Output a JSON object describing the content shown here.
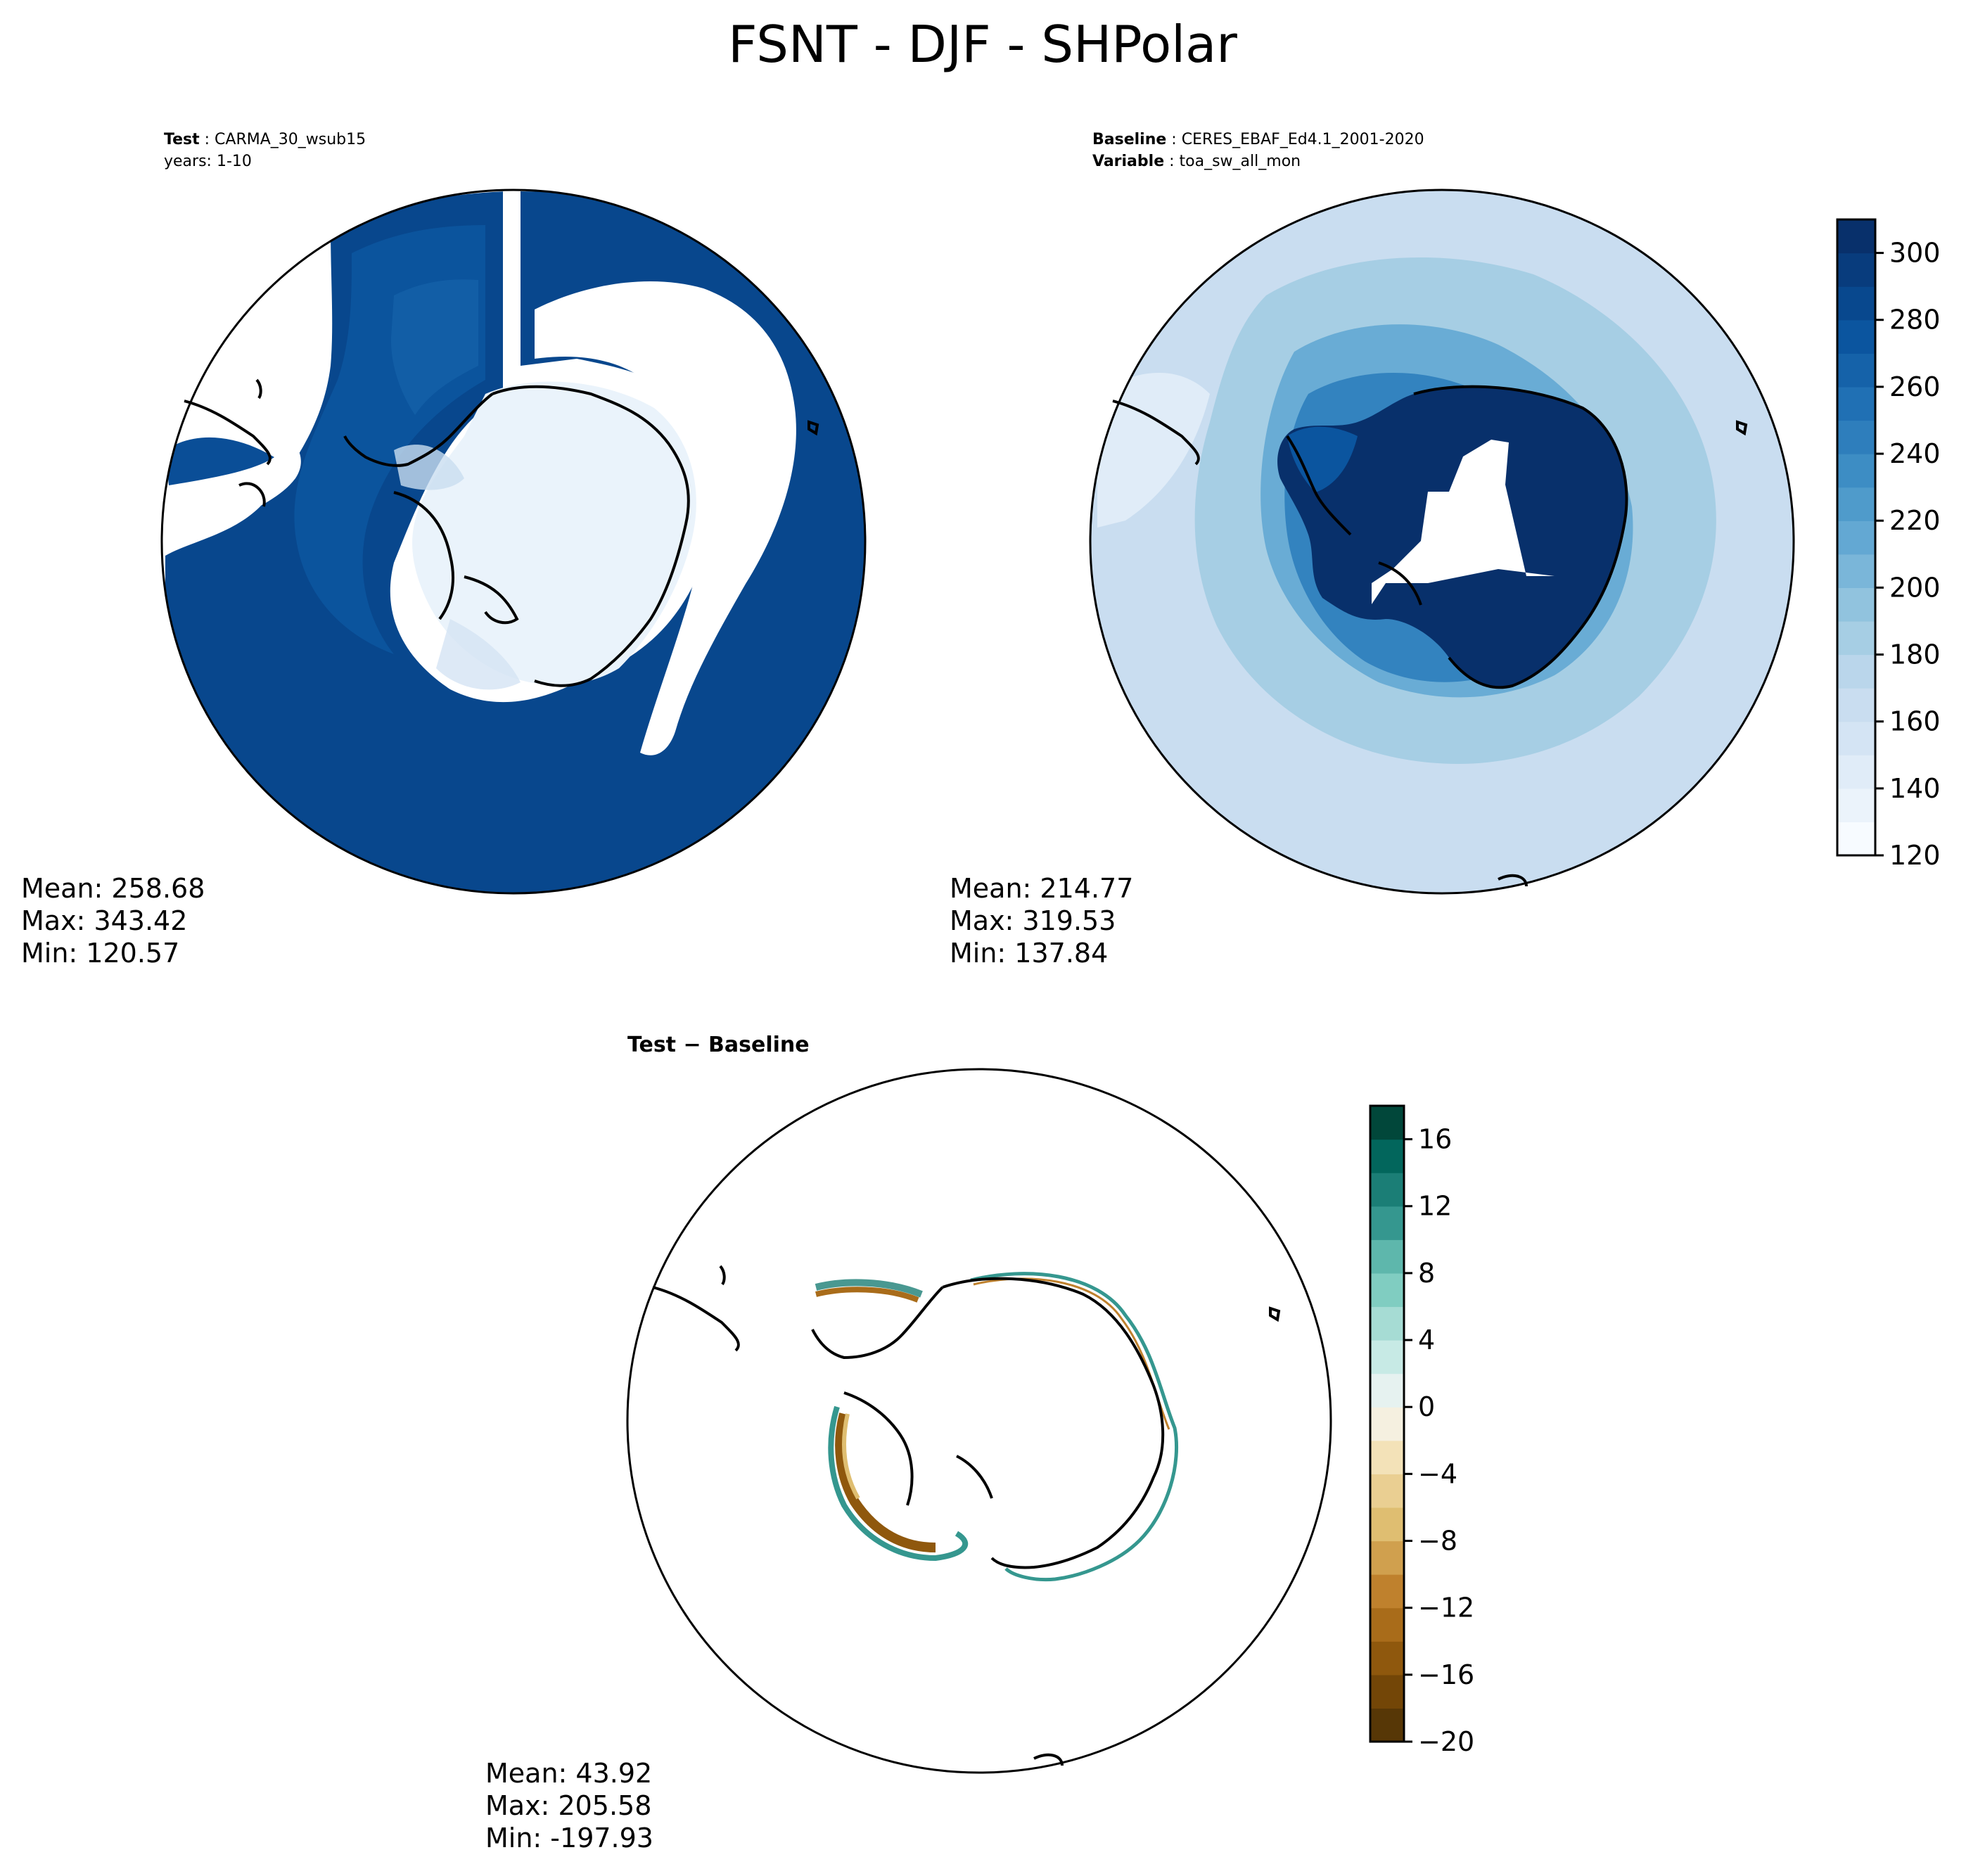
{
  "figure": {
    "title": "FSNT - DJF - SHPolar"
  },
  "panels": [
    {
      "id": "test",
      "header_line1_key": "Test",
      "header_line1_value": "CARMA_30_wsub15",
      "header_line2": "years: 1-10",
      "stats": {
        "mean": "Mean: 258.68",
        "max": "Max: 343.42",
        "min": "Min: 120.57"
      }
    },
    {
      "id": "baseline",
      "header_line1_key": "Baseline",
      "header_line1_value": "CERES_EBAF_Ed4.1_2001-2020",
      "header_line2_key": "Variable",
      "header_line2_value": "toa_sw_all_mon",
      "stats": {
        "mean": "Mean: 214.77",
        "max": "Max: 319.53",
        "min": "Min: 137.84"
      }
    },
    {
      "id": "difference",
      "title": "Test − Baseline",
      "stats": {
        "mean": "Mean: 43.92",
        "max": "Max: 205.58",
        "min": "Min: -197.93"
      }
    }
  ],
  "chart_data": [
    {
      "type": "heatmap",
      "projection": "south-polar-stereographic",
      "panel": "test",
      "colormap": "Blues",
      "value_range": [
        120,
        310
      ],
      "mean": 258.68,
      "max": 343.42,
      "min": 120.57
    },
    {
      "type": "heatmap",
      "projection": "south-polar-stereographic",
      "panel": "baseline",
      "colormap": "Blues",
      "value_range": [
        120,
        310
      ],
      "mean": 214.77,
      "max": 319.53,
      "min": 137.84,
      "colorbar": {
        "ticks": [
          120,
          140,
          160,
          180,
          200,
          220,
          240,
          260,
          280,
          300
        ],
        "tick_labels": [
          "120",
          "140",
          "160",
          "180",
          "200",
          "220",
          "240",
          "260",
          "280",
          "300"
        ],
        "levels": 19,
        "colors": [
          "#f7fbff",
          "#ebf3fb",
          "#e0ecf8",
          "#d4e4f4",
          "#c9ddf0",
          "#bad6eb",
          "#a6cee4",
          "#91c3de",
          "#7ab6d9",
          "#63a8d3",
          "#4f9bcb",
          "#3d8dc4",
          "#2e7ebc",
          "#2070b4",
          "#1562a9",
          "#0b559f",
          "#08488e",
          "#083c7d",
          "#08306b"
        ]
      }
    },
    {
      "type": "heatmap",
      "projection": "south-polar-stereographic",
      "panel": "difference",
      "colormap": "BrBG",
      "value_range": [
        -20,
        18
      ],
      "mean": 43.92,
      "max": 205.58,
      "min": -197.93,
      "colorbar": {
        "ticks": [
          -20,
          -16,
          -12,
          -8,
          -4,
          0,
          4,
          8,
          12,
          16
        ],
        "tick_labels": [
          "−20",
          "−16",
          "−12",
          "−8",
          "−4",
          "0",
          "4",
          "8",
          "12",
          "16"
        ],
        "levels": 19,
        "colors": [
          "#573706",
          "#734607",
          "#8f580d",
          "#a96c1a",
          "#bf812d",
          "#d0a04e",
          "#dfbe71",
          "#eacf92",
          "#f3e2b8",
          "#f5f0e0",
          "#e6f2f0",
          "#c7eae5",
          "#a6dcd4",
          "#80cdc1",
          "#5eb7ac",
          "#35978f",
          "#1b7e76",
          "#02665c",
          "#01473a"
        ]
      }
    }
  ]
}
